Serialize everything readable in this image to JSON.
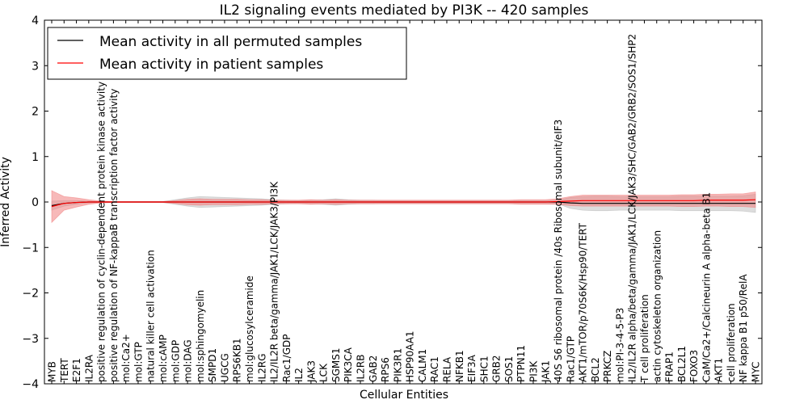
{
  "chart_data": {
    "type": "line",
    "title": "IL2 signaling events mediated by PI3K -- 420 samples",
    "xlabel": "Cellular Entities",
    "ylabel": "Inferred Activity",
    "ylim": [
      -4,
      4
    ],
    "yticks": [
      -4,
      -3,
      -2,
      -1,
      0,
      1,
      2,
      3,
      4
    ],
    "legend_position": "top-left",
    "categories": [
      "MYB",
      "TERT",
      "E2F1",
      "IL2RA",
      "positive regulation of cyclin-dependent protein kinase activity",
      "positive regulation of NF-kappaB transcription factor activity",
      "mol:Ca2+",
      "mol:GTP",
      "natural killer cell activation",
      "mol:cAMP",
      "mol:GDP",
      "mol:DAG",
      "mol:sphingomyelin",
      "SMPD1",
      "UGCG",
      "RPS6KB1",
      "mol:glucosylceramide",
      "IL2RG",
      "IL2/IL2R beta/gamma/JAK1/LCK/JAK3/PI3K",
      "Rac1/GDP",
      "IL2",
      "JAK3",
      "LCK",
      "SGMS1",
      "PIK3CA",
      "IL2RB",
      "GAB2",
      "RPS6",
      "PIK3R1",
      "HSP90AA1",
      "CALM1",
      "RAC1",
      "RELA",
      "NFKB1",
      "EIF3A",
      "SHC1",
      "GRB2",
      "SOS1",
      "PTPN11",
      "PI3K",
      "JAK1",
      "40S S6 ribosomal protein /40s Ribosomal subunit/eIF3",
      "Rac1/GTP",
      "AKT1/mTOR/p70S6K/Hsp90/TERT",
      "BCL2",
      "PRKCZ",
      "mol:PI-3-4-5-P3",
      "IL2/IL2R alpha/beta/gamma/JAK1/LCK/JAK3/SHC/GAB2/GRB2/SOS1/SHP2",
      "T cell proliferation",
      "actin cytoskeleton organization",
      "FRAP1",
      "BCL2L1",
      "FOXO3",
      "CaM/Ca2+/Calcineurin A alpha-beta B1",
      "AKT1",
      "cell proliferation",
      "NF kappa B1 p50/RelA",
      "MYC"
    ],
    "series": [
      {
        "name": "Mean activity in all permuted samples",
        "color": "#000000",
        "band_color": "#bbbbbb",
        "values": [
          -0.08,
          -0.03,
          -0.01,
          0,
          0,
          0,
          0,
          0,
          0,
          0,
          0,
          0,
          0,
          0,
          0,
          0,
          0,
          0,
          0,
          0,
          0,
          0,
          0,
          0,
          0,
          0,
          0,
          0,
          0,
          0,
          0,
          0,
          0,
          0,
          0,
          0,
          0,
          0,
          0,
          0,
          0,
          0,
          -0.02,
          -0.03,
          -0.03,
          -0.03,
          -0.03,
          -0.03,
          -0.03,
          -0.03,
          -0.03,
          -0.03,
          -0.03,
          -0.03,
          -0.03,
          -0.03,
          -0.03,
          -0.03
        ],
        "band": [
          0.1,
          0.06,
          0.04,
          0.02,
          0.01,
          0.01,
          0.01,
          0.01,
          0.01,
          0.01,
          0.05,
          0.09,
          0.12,
          0.11,
          0.1,
          0.09,
          0.08,
          0.07,
          0.05,
          0.04,
          0.03,
          0.04,
          0.05,
          0.07,
          0.05,
          0.04,
          0.04,
          0.03,
          0.03,
          0.03,
          0.03,
          0.03,
          0.03,
          0.03,
          0.03,
          0.03,
          0.03,
          0.03,
          0.03,
          0.03,
          0.03,
          0.04,
          0.12,
          0.15,
          0.16,
          0.16,
          0.15,
          0.15,
          0.15,
          0.15,
          0.15,
          0.16,
          0.16,
          0.16,
          0.16,
          0.16,
          0.17,
          0.2
        ]
      },
      {
        "name": "Mean activity in patient samples",
        "color": "#ff0000",
        "band_color": "#f08080",
        "values": [
          -0.1,
          -0.03,
          -0.01,
          0,
          0,
          0,
          0,
          0,
          0,
          0,
          0,
          0,
          0,
          0,
          0,
          0,
          0,
          0,
          0,
          0,
          0,
          0,
          0,
          0,
          0,
          0,
          0,
          0,
          0,
          0,
          0,
          0,
          0,
          0,
          0,
          0,
          0,
          0,
          0,
          0,
          0,
          0.01,
          0.02,
          0.03,
          0.03,
          0.03,
          0.03,
          0.03,
          0.03,
          0.03,
          0.03,
          0.03,
          0.03,
          0.04,
          0.04,
          0.04,
          0.04,
          0.05
        ],
        "band": [
          0.35,
          0.15,
          0.1,
          0.05,
          0.02,
          0.01,
          0.01,
          0.01,
          0.01,
          0.01,
          0.03,
          0.06,
          0.07,
          0.06,
          0.06,
          0.06,
          0.05,
          0.05,
          0.04,
          0.04,
          0.04,
          0.05,
          0.04,
          0.05,
          0.04,
          0.04,
          0.04,
          0.04,
          0.04,
          0.04,
          0.04,
          0.04,
          0.04,
          0.04,
          0.04,
          0.04,
          0.04,
          0.04,
          0.05,
          0.05,
          0.05,
          0.06,
          0.1,
          0.12,
          0.12,
          0.12,
          0.12,
          0.12,
          0.12,
          0.12,
          0.12,
          0.13,
          0.13,
          0.13,
          0.13,
          0.14,
          0.14,
          0.17
        ]
      }
    ]
  }
}
